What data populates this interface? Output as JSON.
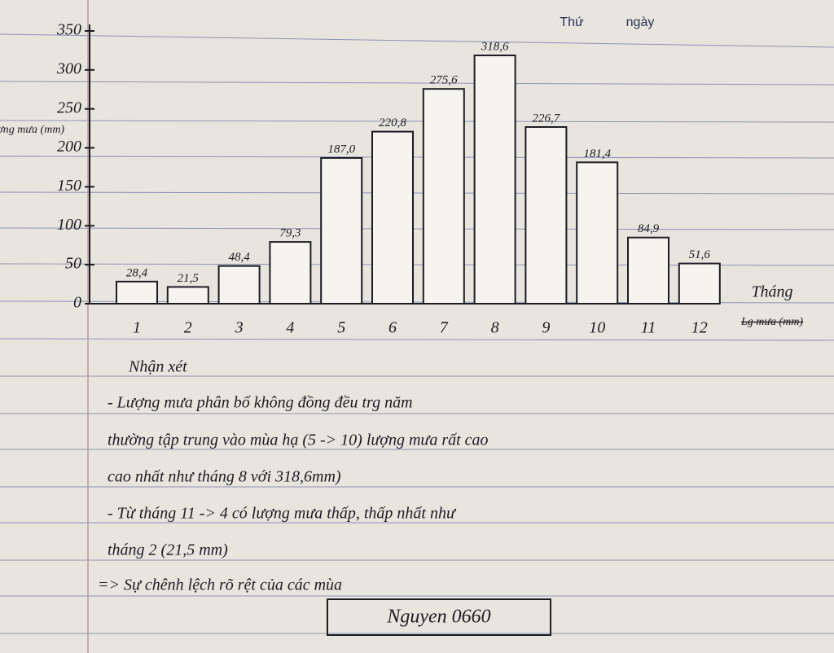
{
  "header": {
    "day_label": "Thứ",
    "date_label": "ngày"
  },
  "chart_data": {
    "type": "bar",
    "y_label": "Lượng mưa (mm)",
    "x_label": "Tháng",
    "x_label_struck": "Lg mưa (mm)",
    "categories": [
      "1",
      "2",
      "3",
      "4",
      "5",
      "6",
      "7",
      "8",
      "9",
      "10",
      "11",
      "12"
    ],
    "values": [
      28.4,
      21.5,
      48.4,
      79.3,
      187.0,
      220.8,
      275.6,
      318.6,
      226.7,
      181.4,
      84.9,
      51.6
    ],
    "value_labels": [
      "28,4",
      "21,5",
      "48,4",
      "79,3",
      "187,0",
      "220,8",
      "275,6",
      "318,6",
      "226,7",
      "181,4",
      "84,9",
      "51,6"
    ],
    "color": "#f6f4ef",
    "ylim": [
      0,
      350
    ],
    "yticks": [
      0,
      50,
      100,
      150,
      200,
      250,
      300,
      350
    ]
  },
  "notes": {
    "title": "Nhận xét",
    "lines": [
      "- Lượng mưa phân bố không đồng đều trg năm",
      "thường tập trung vào mùa hạ (5 -> 10) lượng mưa rất cao",
      "cao nhất như tháng 8 với 318,6mm)",
      "- Từ tháng 11 -> 4 có lượng mưa thấp, thấp nhất như",
      "tháng 2 (21,5 mm)",
      "=> Sự chênh lệch rõ rệt của các mùa"
    ],
    "signature": "Nguyen 0660"
  }
}
